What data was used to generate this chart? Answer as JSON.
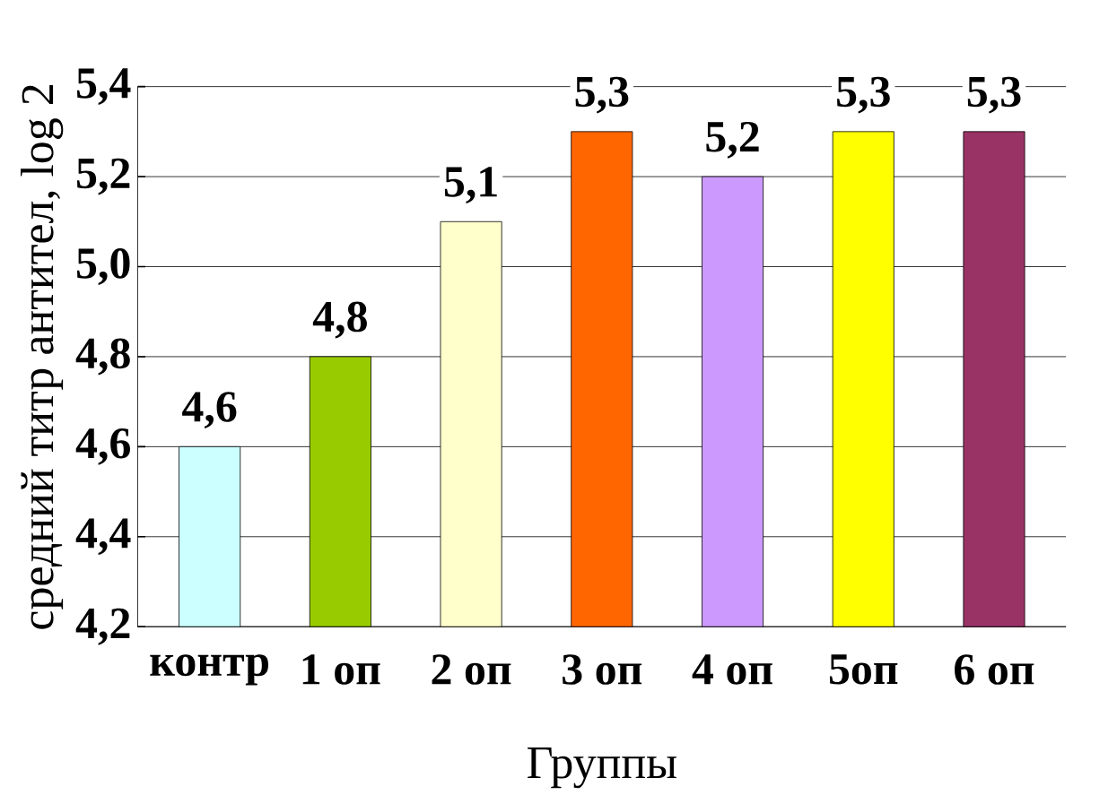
{
  "chart_data": {
    "type": "bar",
    "xlabel": "Группы",
    "ylabel": "средний титр антител, log 2",
    "categories": [
      "контр",
      "1 оп",
      "2 оп",
      "3 оп",
      "4 оп",
      "5оп",
      "6 оп"
    ],
    "values": [
      4.6,
      4.8,
      5.1,
      5.3,
      5.2,
      5.3,
      5.3
    ],
    "value_labels": [
      "4,6",
      "4,8",
      "5,1",
      "5,3",
      "5,2",
      "5,3",
      "5,3"
    ],
    "colors": [
      "#ccffff",
      "#99cc00",
      "#ffffcc",
      "#ff6600",
      "#cc99ff",
      "#ffff00",
      "#993366"
    ],
    "ylim": [
      4.2,
      5.4
    ],
    "yticks": [
      {
        "value": 4.2,
        "label": "4,2"
      },
      {
        "value": 4.4,
        "label": "4,4"
      },
      {
        "value": 4.6,
        "label": "4,6"
      },
      {
        "value": 4.8,
        "label": "4,8"
      },
      {
        "value": 5.0,
        "label": "5,0"
      },
      {
        "value": 5.2,
        "label": "5,2"
      },
      {
        "value": 5.4,
        "label": "5,4"
      }
    ],
    "grid": "y"
  }
}
